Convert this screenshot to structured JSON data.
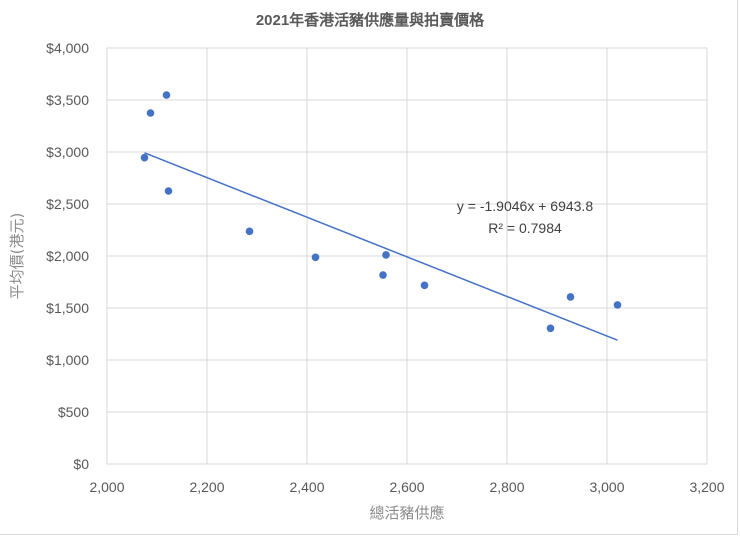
{
  "chart_data": {
    "type": "scatter",
    "title": "2021年香港活豬供應量與拍賣價格",
    "xlabel": "總活豬供應",
    "ylabel": "平均價(港元)",
    "xlim": [
      2000,
      3200
    ],
    "ylim": [
      0,
      4000
    ],
    "x_ticks": [
      "2,000",
      "2,200",
      "2,400",
      "2,600",
      "2,800",
      "3,000",
      "3,200"
    ],
    "y_ticks": [
      "$0",
      "$500",
      "$1,000",
      "$1,500",
      "$2,000",
      "$2,500",
      "$3,000",
      "$3,500",
      "$4,000"
    ],
    "grid": true,
    "legend": false,
    "series": [
      {
        "name": "平均價",
        "color": "#4472c4",
        "points": [
          {
            "x": 2119,
            "y": 3548
          },
          {
            "x": 2087,
            "y": 3375
          },
          {
            "x": 2075,
            "y": 2945
          },
          {
            "x": 2123,
            "y": 2625
          },
          {
            "x": 2285,
            "y": 2237
          },
          {
            "x": 2417,
            "y": 1987
          },
          {
            "x": 2558,
            "y": 2010
          },
          {
            "x": 2552,
            "y": 1817
          },
          {
            "x": 2635,
            "y": 1718
          },
          {
            "x": 2927,
            "y": 1606
          },
          {
            "x": 3021,
            "y": 1529
          },
          {
            "x": 2887,
            "y": 1305
          }
        ]
      }
    ],
    "trendline": {
      "type": "linear",
      "slope": -1.9046,
      "intercept": 6943.8,
      "x_range": [
        2075,
        3021
      ],
      "color": "#4472c4",
      "equation_label": "y = -1.9046x + 6943.8",
      "r_squared_label": "R² = 0.7984"
    }
  }
}
